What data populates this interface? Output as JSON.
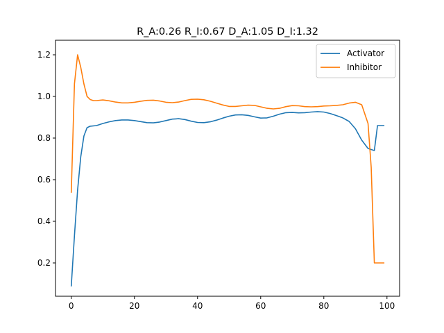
{
  "chart_data": {
    "type": "line",
    "title": "R_A:0.26 R_I:0.67 D_A:1.05 D_I:1.32",
    "xlabel": "",
    "ylabel": "",
    "xlim": [
      -5,
      104
    ],
    "ylim": [
      0.04,
      1.27
    ],
    "xticks": [
      0,
      20,
      40,
      60,
      80,
      100
    ],
    "yticks": [
      0.2,
      0.4,
      0.6,
      0.8,
      1.0,
      1.2
    ],
    "xtick_labels": [
      "0",
      "20",
      "40",
      "60",
      "80",
      "100"
    ],
    "ytick_labels": [
      "0.2",
      "0.4",
      "0.6",
      "0.8",
      "1.0",
      "1.2"
    ],
    "grid": false,
    "legend_position": "top-right",
    "series": [
      {
        "name": "Activator",
        "color": "#1f77b4",
        "x": [
          0,
          1,
          2,
          3,
          4,
          5,
          6,
          8,
          10,
          12,
          14,
          16,
          18,
          20,
          22,
          24,
          26,
          28,
          30,
          32,
          34,
          36,
          38,
          40,
          42,
          44,
          46,
          48,
          50,
          52,
          54,
          56,
          58,
          60,
          62,
          64,
          66,
          68,
          70,
          72,
          74,
          76,
          78,
          80,
          82,
          84,
          86,
          88,
          90,
          92,
          94,
          96,
          97,
          98,
          99
        ],
        "values": [
          0.09,
          0.33,
          0.55,
          0.71,
          0.81,
          0.85,
          0.857,
          0.86,
          0.87,
          0.878,
          0.884,
          0.887,
          0.887,
          0.884,
          0.879,
          0.874,
          0.873,
          0.877,
          0.884,
          0.891,
          0.893,
          0.889,
          0.881,
          0.875,
          0.874,
          0.878,
          0.886,
          0.896,
          0.905,
          0.911,
          0.912,
          0.909,
          0.902,
          0.896,
          0.897,
          0.905,
          0.915,
          0.922,
          0.923,
          0.921,
          0.922,
          0.925,
          0.927,
          0.925,
          0.918,
          0.908,
          0.897,
          0.88,
          0.845,
          0.79,
          0.75,
          0.74,
          0.86,
          0.86,
          0.86
        ]
      },
      {
        "name": "Inhibitor",
        "color": "#ff7f0e",
        "x": [
          0,
          1,
          2,
          3,
          4,
          5,
          6,
          7,
          8,
          10,
          12,
          14,
          16,
          18,
          20,
          22,
          24,
          26,
          28,
          30,
          32,
          34,
          36,
          38,
          40,
          42,
          44,
          46,
          48,
          50,
          52,
          54,
          56,
          58,
          60,
          62,
          64,
          66,
          68,
          70,
          72,
          74,
          76,
          78,
          80,
          82,
          84,
          86,
          88,
          90,
          92,
          94,
          95,
          96,
          97,
          98,
          99
        ],
        "values": [
          0.54,
          1.06,
          1.2,
          1.14,
          1.06,
          1.0,
          0.985,
          0.98,
          0.98,
          0.983,
          0.979,
          0.973,
          0.969,
          0.969,
          0.972,
          0.977,
          0.981,
          0.982,
          0.978,
          0.972,
          0.97,
          0.973,
          0.98,
          0.986,
          0.987,
          0.984,
          0.977,
          0.968,
          0.959,
          0.952,
          0.952,
          0.955,
          0.958,
          0.957,
          0.95,
          0.943,
          0.94,
          0.943,
          0.951,
          0.956,
          0.955,
          0.951,
          0.95,
          0.951,
          0.954,
          0.955,
          0.957,
          0.96,
          0.968,
          0.972,
          0.96,
          0.87,
          0.66,
          0.2,
          0.2,
          0.2,
          0.2
        ]
      }
    ]
  }
}
